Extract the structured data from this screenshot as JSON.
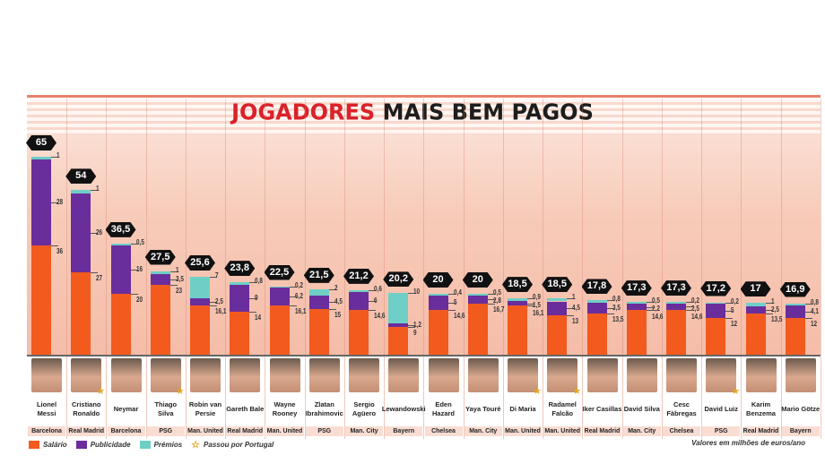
{
  "chart_data": {
    "type": "bar",
    "stacked": true,
    "title_parts": [
      "JOGADORES",
      "MAIS BEM PAGOS"
    ],
    "unit_note": "Valores em milhões de euros/ano",
    "series_names": [
      "Salário",
      "Publicidade",
      "Prémios"
    ],
    "colors": {
      "Salário": "#f25a1e",
      "Publicidade": "#6a2d9c",
      "Prémios": "#6fcfc6",
      "star": "#e3a722"
    },
    "star_legend": "Passou por Portugal",
    "players": [
      {
        "name": "Lionel Messi",
        "club": "Barcelona",
        "total": 65,
        "salario": 36,
        "publicidade": 28,
        "premios": 1,
        "portugal": false
      },
      {
        "name": "Cristiano Ronaldo",
        "club": "Real Madrid",
        "total": 54,
        "salario": 27,
        "publicidade": 26,
        "premios": 1,
        "portugal": true
      },
      {
        "name": "Neymar",
        "club": "Barcelona",
        "total": 36.5,
        "salario": 20,
        "publicidade": 16,
        "premios": 0.5,
        "portugal": false
      },
      {
        "name": "Thiago Silva",
        "club": "PSG",
        "total": 27.5,
        "salario": 23,
        "publicidade": 3.5,
        "premios": 1,
        "portugal": true
      },
      {
        "name": "Robin van Persie",
        "club": "Man. United",
        "total": 25.6,
        "salario": 16.1,
        "publicidade": 2.5,
        "premios": 7,
        "portugal": false
      },
      {
        "name": "Gareth Bale",
        "club": "Real Madrid",
        "total": 23.8,
        "salario": 14,
        "publicidade": 9,
        "premios": 0.8,
        "portugal": false
      },
      {
        "name": "Wayne Rooney",
        "club": "Man. United",
        "total": 22.5,
        "salario": 16.1,
        "publicidade": 6.2,
        "premios": 0.2,
        "portugal": false
      },
      {
        "name": "Zlatan Ibrahimovic",
        "club": "PSG",
        "total": 21.5,
        "salario": 15,
        "publicidade": 4.5,
        "premios": 2,
        "portugal": false
      },
      {
        "name": "Sergio Agüero",
        "club": "Man. City",
        "total": 21.2,
        "salario": 14.6,
        "publicidade": 6,
        "premios": 0.6,
        "portugal": false
      },
      {
        "name": "Lewandowski",
        "club": "Bayern",
        "total": 20.2,
        "salario": 9,
        "publicidade": 1.2,
        "premios": 10,
        "portugal": false
      },
      {
        "name": "Eden Hazard",
        "club": "Chelsea",
        "total": 20,
        "salario": 14.6,
        "publicidade": 5,
        "premios": 0.4,
        "portugal": false
      },
      {
        "name": "Yaya Touré",
        "club": "Man. City",
        "total": 20,
        "salario": 16.7,
        "publicidade": 2.8,
        "premios": 0.5,
        "portugal": false
      },
      {
        "name": "Di Maria",
        "club": "Man. United",
        "total": 18.5,
        "salario": 16.1,
        "publicidade": 1.5,
        "premios": 0.9,
        "portugal": true
      },
      {
        "name": "Radamel Falcão",
        "club": "Man. United",
        "total": 18.5,
        "salario": 13,
        "publicidade": 4.5,
        "premios": 1,
        "portugal": true
      },
      {
        "name": "Iker Casillas",
        "club": "Real Madrid",
        "total": 17.8,
        "salario": 13.5,
        "publicidade": 3.5,
        "premios": 0.8,
        "portugal": false
      },
      {
        "name": "David Silva",
        "club": "Man. City",
        "total": 17.3,
        "salario": 14.6,
        "publicidade": 2.2,
        "premios": 0.5,
        "portugal": false
      },
      {
        "name": "Cesc Fàbregas",
        "club": "Chelsea",
        "total": 17.3,
        "salario": 14.6,
        "publicidade": 2.5,
        "premios": 0.2,
        "portugal": false
      },
      {
        "name": "David Luiz",
        "club": "PSG",
        "total": 17.2,
        "salario": 12,
        "publicidade": 5,
        "premios": 0.2,
        "portugal": true
      },
      {
        "name": "Karim Benzema",
        "club": "Real Madrid",
        "total": 17,
        "salario": 13.5,
        "publicidade": 2.5,
        "premios": 1,
        "portugal": false
      },
      {
        "name": "Mario Götze",
        "club": "Bayern",
        "total": 16.9,
        "salario": 12,
        "publicidade": 4.1,
        "premios": 0.8,
        "portugal": false
      }
    ]
  }
}
